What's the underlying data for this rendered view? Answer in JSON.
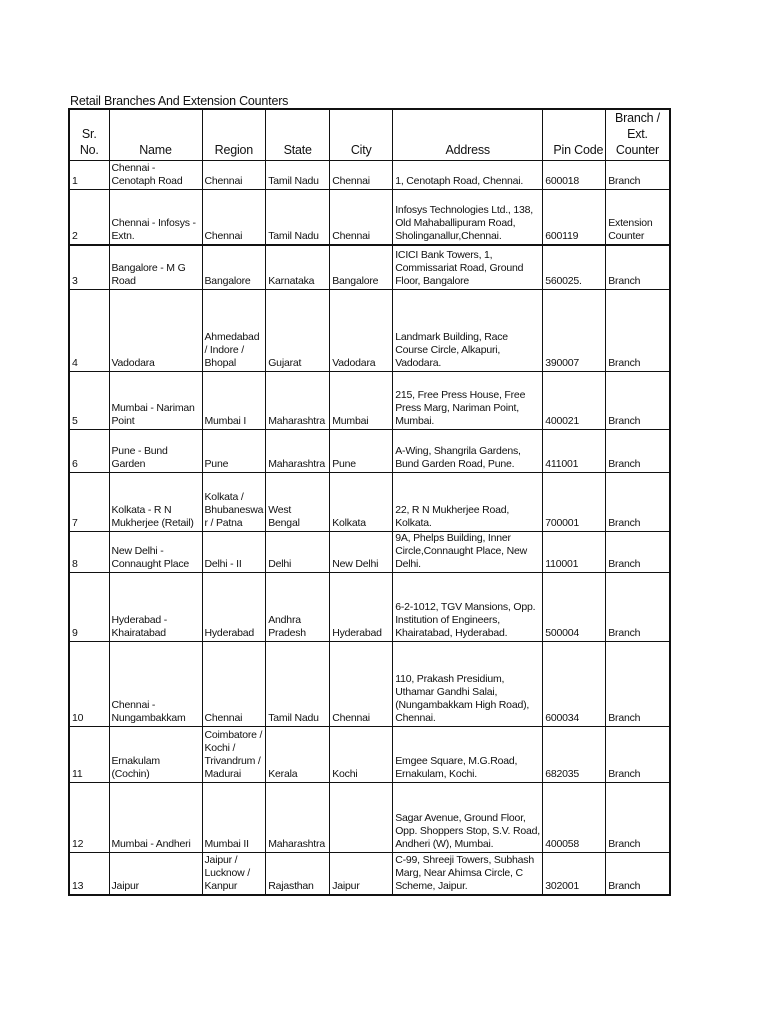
{
  "title": "Retail Branches And Extension Counters",
  "columns": [
    "Sr.\nNo.",
    "Name",
    "Region",
    "State",
    "City",
    "Address",
    "Pin Code",
    "Branch /\nExt.\nCounter"
  ],
  "rows": [
    [
      "1",
      "Chennai -\nCenotaph Road",
      "Chennai",
      "Tamil Nadu",
      "Chennai",
      "1, Cenotaph Road, Chennai.",
      "600018",
      "Branch"
    ],
    [
      "2",
      "Chennai - Infosys -\nExtn.",
      "Chennai",
      "Tamil Nadu",
      "Chennai",
      "Infosys Technologies Ltd., 138,\nOld Mahaballipuram Road,\nSholinganallur,Chennai.",
      "600119",
      "Extension\nCounter"
    ],
    [
      "3",
      "Bangalore - M G\nRoad",
      "Bangalore",
      "Karnataka",
      "Bangalore",
      "ICICI Bank Towers, 1,\nCommissariat Road, Ground\nFloor, Bangalore",
      "560025.",
      "Branch"
    ],
    [
      "4",
      "Vadodara",
      "Ahmedabad\n/ Indore /\nBhopal",
      "Gujarat",
      "Vadodara",
      "Landmark Building, Race\nCourse Circle, Alkapuri,\nVadodara.",
      "390007",
      "Branch"
    ],
    [
      "5",
      "Mumbai - Nariman\nPoint",
      "Mumbai I",
      "Maharashtra",
      "Mumbai",
      "215, Free Press House, Free\nPress Marg, Nariman Point,\nMumbai.",
      "400021",
      "Branch"
    ],
    [
      "6",
      "Pune - Bund\nGarden",
      "Pune",
      "Maharashtra",
      "Pune",
      "A-Wing, Shangrila Gardens,\nBund Garden Road, Pune.",
      "411001",
      "Branch"
    ],
    [
      "7",
      "Kolkata - R N\nMukherjee (Retail)",
      "Kolkata /\nBhubaneswa\nr / Patna",
      "West\nBengal",
      "Kolkata",
      "22, R N Mukherjee Road,\nKolkata.",
      "700001",
      "Branch"
    ],
    [
      "8",
      "New Delhi -\nConnaught Place",
      "Delhi - II",
      "Delhi",
      "New Delhi",
      "9A, Phelps Building, Inner\nCircle,Connaught Place, New\nDelhi.",
      "110001",
      "Branch"
    ],
    [
      "9",
      "Hyderabad -\nKhairatabad",
      "Hyderabad",
      "Andhra\nPradesh",
      "Hyderabad",
      "6-2-1012, TGV Mansions, Opp.\nInstitution of Engineers,\nKhairatabad, Hyderabad.",
      "500004",
      "Branch"
    ],
    [
      "10",
      "Chennai -\nNungambakkam",
      "Chennai",
      "Tamil Nadu",
      "Chennai",
      "110, Prakash Presidium,\nUthamar Gandhi Salai,\n(Nungambakkam High Road),\nChennai.",
      "600034",
      "Branch"
    ],
    [
      "11",
      "Ernakulam\n(Cochin)",
      "Coimbatore /\nKochi /\nTrivandrum /\nMadurai",
      "Kerala",
      "Kochi",
      "Emgee Square, M.G.Road,\nErnakulam, Kochi.",
      "682035",
      "Branch"
    ],
    [
      "12",
      "Mumbai - Andheri",
      "Mumbai II",
      "Maharashtra",
      "",
      "Sagar Avenue, Ground Floor,\nOpp. Shoppers Stop, S.V. Road,\nAndheri (W), Mumbai.",
      "400058",
      "Branch"
    ],
    [
      "13",
      "Jaipur",
      "Jaipur /\nLucknow /\nKanpur",
      "Rajasthan",
      "Jaipur",
      "C-99, Shreeji Towers, Subhash\nMarg, Near Ahimsa Circle, C\nScheme, Jaipur.",
      "302001",
      "Branch"
    ]
  ]
}
